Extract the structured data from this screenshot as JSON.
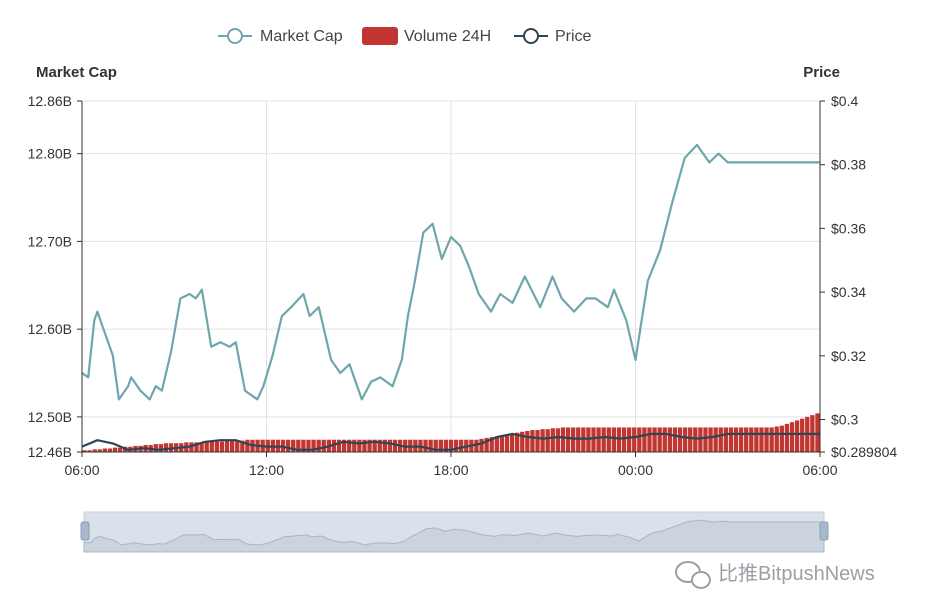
{
  "chart_data": {
    "type": "line",
    "legend": [
      {
        "name": "Market Cap",
        "color": "#6fa6ad",
        "kind": "line-circle"
      },
      {
        "name": "Volume 24H",
        "color": "#c23531",
        "kind": "bar"
      },
      {
        "name": "Price",
        "color": "#2f4554",
        "kind": "line-circle"
      }
    ],
    "legend_position": "top-center",
    "axes": {
      "left_title": "Market Cap",
      "right_title": "Price",
      "x_ticks": [
        "06:00",
        "12:00",
        "18:00",
        "00:00",
        "06:00"
      ],
      "left_ticks": [
        {
          "label": "12.86B",
          "value": 12.86
        },
        {
          "label": "12.80B",
          "value": 12.8
        },
        {
          "label": "12.70B",
          "value": 12.7
        },
        {
          "label": "12.60B",
          "value": 12.6
        },
        {
          "label": "12.50B",
          "value": 12.5
        },
        {
          "label": "12.46B",
          "value": 12.46
        }
      ],
      "right_ticks": [
        {
          "label": "$0.4",
          "value": 0.4
        },
        {
          "label": "$0.38",
          "value": 0.38
        },
        {
          "label": "$0.36",
          "value": 0.36
        },
        {
          "label": "$0.34",
          "value": 0.34
        },
        {
          "label": "$0.32",
          "value": 0.32
        },
        {
          "label": "$0.3",
          "value": 0.3
        },
        {
          "label": "$0.289804",
          "value": 0.289804
        }
      ],
      "left_range": [
        12.46,
        12.86
      ],
      "right_range": [
        0.289804,
        0.4
      ],
      "x_range": [
        0,
        24
      ],
      "grid": true
    },
    "series": [
      {
        "name": "Market Cap",
        "axis": "left",
        "x": [
          0,
          0.2,
          0.4,
          0.5,
          0.7,
          0.8,
          1.0,
          1.2,
          1.5,
          1.6,
          1.9,
          2.2,
          2.4,
          2.6,
          2.9,
          3.2,
          3.5,
          3.7,
          3.9,
          4.2,
          4.5,
          4.8,
          5.0,
          5.3,
          5.7,
          5.9,
          6.2,
          6.5,
          6.8,
          7.2,
          7.4,
          7.7,
          8.1,
          8.4,
          8.7,
          9.1,
          9.4,
          9.7,
          10.1,
          10.4,
          10.6,
          10.8,
          11.1,
          11.4,
          11.7,
          12.0,
          12.3,
          12.6,
          12.9,
          13.3,
          13.6,
          14.0,
          14.4,
          14.9,
          15.3,
          15.6,
          16.0,
          16.4,
          16.7,
          17.1,
          17.3,
          17.7,
          18.0,
          18.4,
          18.8,
          19.2,
          19.6,
          20.0,
          20.4,
          20.7,
          21.0,
          21.3,
          21.7,
          22.0,
          22.3,
          22.6,
          22.8,
          23.0,
          23.2,
          23.4,
          23.6,
          23.8,
          24.0
        ],
        "values": [
          12.55,
          12.545,
          12.61,
          12.62,
          12.6,
          12.59,
          12.57,
          12.52,
          12.535,
          12.545,
          12.53,
          12.52,
          12.535,
          12.53,
          12.575,
          12.635,
          12.64,
          12.635,
          12.645,
          12.58,
          12.585,
          12.58,
          12.585,
          12.53,
          12.52,
          12.535,
          12.57,
          12.615,
          12.625,
          12.64,
          12.615,
          12.625,
          12.565,
          12.55,
          12.56,
          12.52,
          12.54,
          12.545,
          12.535,
          12.565,
          12.615,
          12.65,
          12.71,
          12.72,
          12.68,
          12.705,
          12.695,
          12.67,
          12.64,
          12.62,
          12.64,
          12.63,
          12.66,
          12.625,
          12.66,
          12.635,
          12.62,
          12.635,
          12.635,
          12.625,
          12.645,
          12.61,
          12.565,
          12.655,
          12.69,
          12.745,
          12.795,
          12.81,
          12.79,
          12.8,
          12.79,
          12.79,
          12.79,
          12.79,
          12.79,
          12.79,
          12.79,
          12.79,
          12.79,
          12.79,
          12.79,
          12.79,
          12.79
        ]
      },
      {
        "name": "Price",
        "axis": "right",
        "x": [
          0,
          0.5,
          1.0,
          1.5,
          2.0,
          2.5,
          3.0,
          3.5,
          4.0,
          4.5,
          5.0,
          5.5,
          6.0,
          6.5,
          7.0,
          7.5,
          8.0,
          8.5,
          9.0,
          9.5,
          10.0,
          10.5,
          11.0,
          11.5,
          12.0,
          12.5,
          13.0,
          13.5,
          14.0,
          14.5,
          15.0,
          15.5,
          16.0,
          16.5,
          17.0,
          17.5,
          18.0,
          18.5,
          19.0,
          19.5,
          20.0,
          20.5,
          21.0,
          21.5,
          22.0,
          22.5,
          23.0,
          23.5,
          24.0
        ],
        "values": [
          0.2915,
          0.2935,
          0.2925,
          0.2905,
          0.291,
          0.2905,
          0.291,
          0.2915,
          0.293,
          0.2935,
          0.2935,
          0.292,
          0.2915,
          0.2915,
          0.2905,
          0.2905,
          0.2915,
          0.293,
          0.2925,
          0.293,
          0.2925,
          0.2915,
          0.2915,
          0.2905,
          0.2905,
          0.2915,
          0.2925,
          0.2945,
          0.2955,
          0.2945,
          0.294,
          0.2945,
          0.294,
          0.294,
          0.2945,
          0.294,
          0.2945,
          0.2955,
          0.2955,
          0.2945,
          0.294,
          0.2945,
          0.2955,
          0.2955,
          0.2955,
          0.2955,
          0.2955,
          0.2955,
          0.2955
        ]
      },
      {
        "name": "Volume 24H",
        "type": "bar",
        "axis": "left",
        "x_start": 0,
        "x_end": 24,
        "values": [
          12.462,
          12.462,
          12.463,
          12.463,
          12.464,
          12.464,
          12.465,
          12.465,
          12.466,
          12.466,
          12.467,
          12.467,
          12.468,
          12.468,
          12.469,
          12.469,
          12.47,
          12.47,
          12.47,
          12.47,
          12.471,
          12.471,
          12.471,
          12.471,
          12.472,
          12.472,
          12.472,
          12.472,
          12.473,
          12.473,
          12.473,
          12.473,
          12.474,
          12.474,
          12.474,
          12.474,
          12.474,
          12.474,
          12.474,
          12.474,
          12.474,
          12.474,
          12.474,
          12.474,
          12.474,
          12.474,
          12.474,
          12.474,
          12.474,
          12.474,
          12.474,
          12.474,
          12.474,
          12.474,
          12.474,
          12.474,
          12.474,
          12.474,
          12.474,
          12.474,
          12.474,
          12.474,
          12.474,
          12.474,
          12.474,
          12.474,
          12.474,
          12.474,
          12.474,
          12.474,
          12.474,
          12.474,
          12.474,
          12.474,
          12.474,
          12.474,
          12.474,
          12.474,
          12.475,
          12.476,
          12.477,
          12.478,
          12.479,
          12.48,
          12.481,
          12.482,
          12.483,
          12.484,
          12.485,
          12.485,
          12.486,
          12.486,
          12.487,
          12.487,
          12.488,
          12.488,
          12.488,
          12.488,
          12.488,
          12.488,
          12.488,
          12.488,
          12.488,
          12.488,
          12.488,
          12.488,
          12.488,
          12.488,
          12.488,
          12.488,
          12.488,
          12.488,
          12.488,
          12.488,
          12.488,
          12.488,
          12.488,
          12.488,
          12.488,
          12.488,
          12.488,
          12.488,
          12.488,
          12.488,
          12.488,
          12.488,
          12.488,
          12.488,
          12.488,
          12.488,
          12.488,
          12.488,
          12.488,
          12.488,
          12.488,
          12.488,
          12.489,
          12.49,
          12.492,
          12.494,
          12.496,
          12.498,
          12.5,
          12.502,
          12.504
        ]
      }
    ]
  },
  "watermark": {
    "text": "比推BitpushNews",
    "icon": "wechat-icon"
  }
}
